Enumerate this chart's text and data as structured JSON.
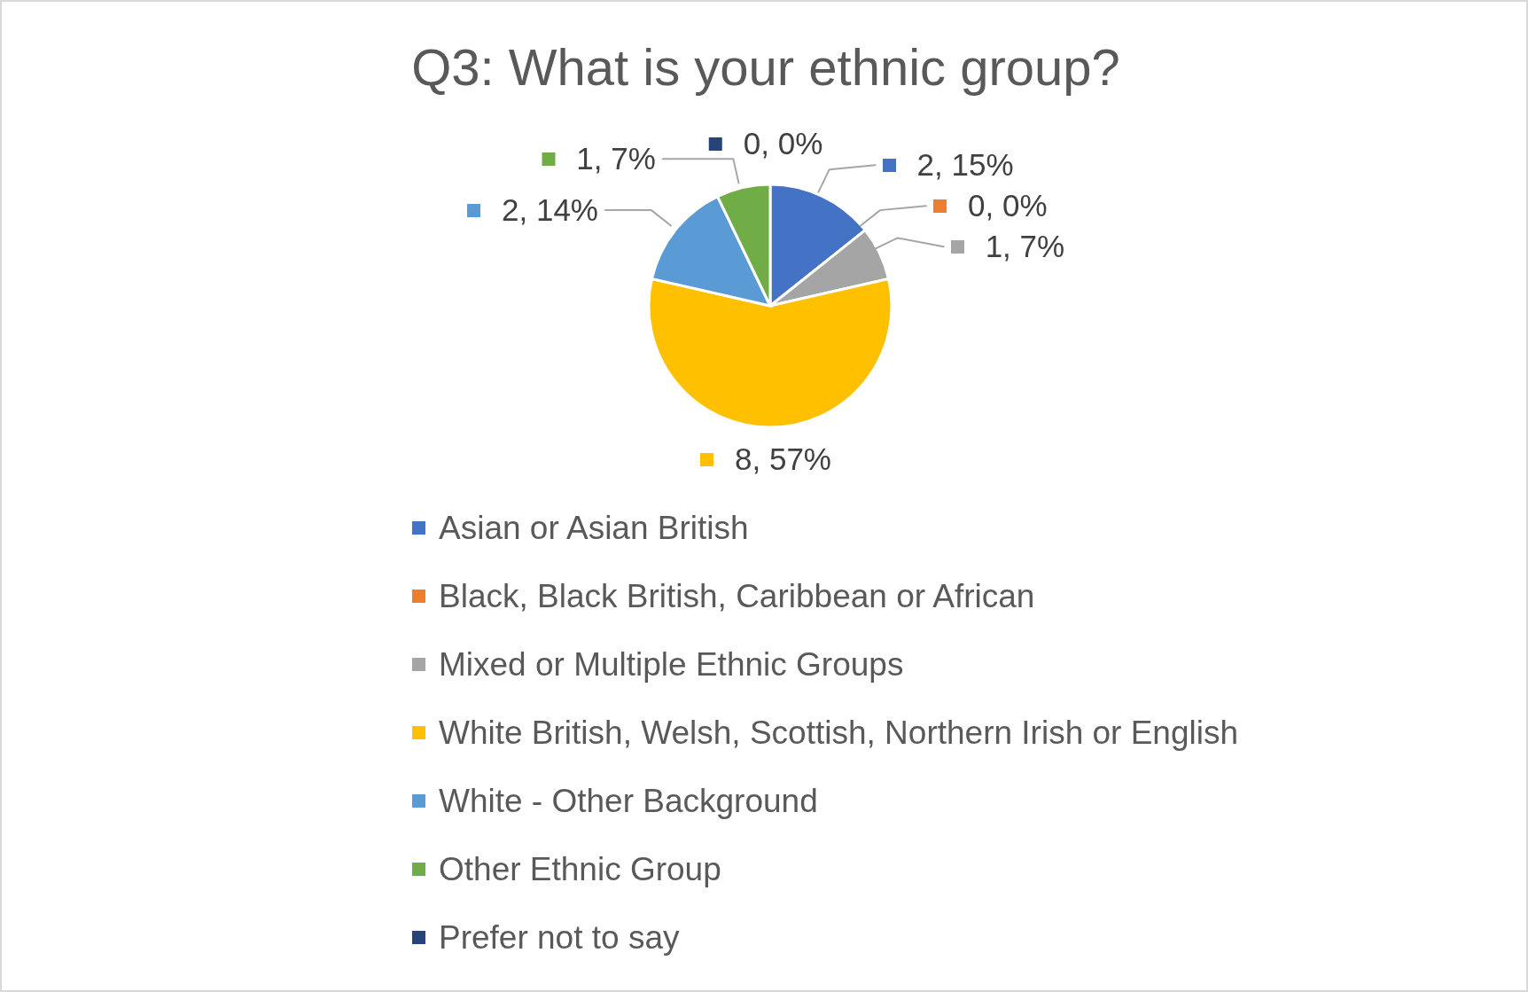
{
  "chart_data": {
    "type": "pie",
    "title": "Q3: What is your ethnic group?",
    "categories": [
      "Asian or Asian British",
      "Black, Black British, Caribbean or African",
      "Mixed or Multiple Ethnic Groups",
      "White British, Welsh, Scottish, Northern Irish or English",
      "White - Other Background",
      "Other Ethnic Group",
      "Prefer not to say"
    ],
    "values": [
      2,
      0,
      1,
      8,
      2,
      1,
      0
    ],
    "colors": [
      "#4472c4",
      "#ed7d31",
      "#a5a5a5",
      "#ffc000",
      "#5b9bd5",
      "#70ad47",
      "#264478"
    ],
    "value_labels": [
      "2, 15%",
      "0, 0%",
      "1, 7%",
      "8, 57%",
      "2, 14%",
      "1, 7%",
      "0, 0%"
    ],
    "legend": "bottom"
  }
}
